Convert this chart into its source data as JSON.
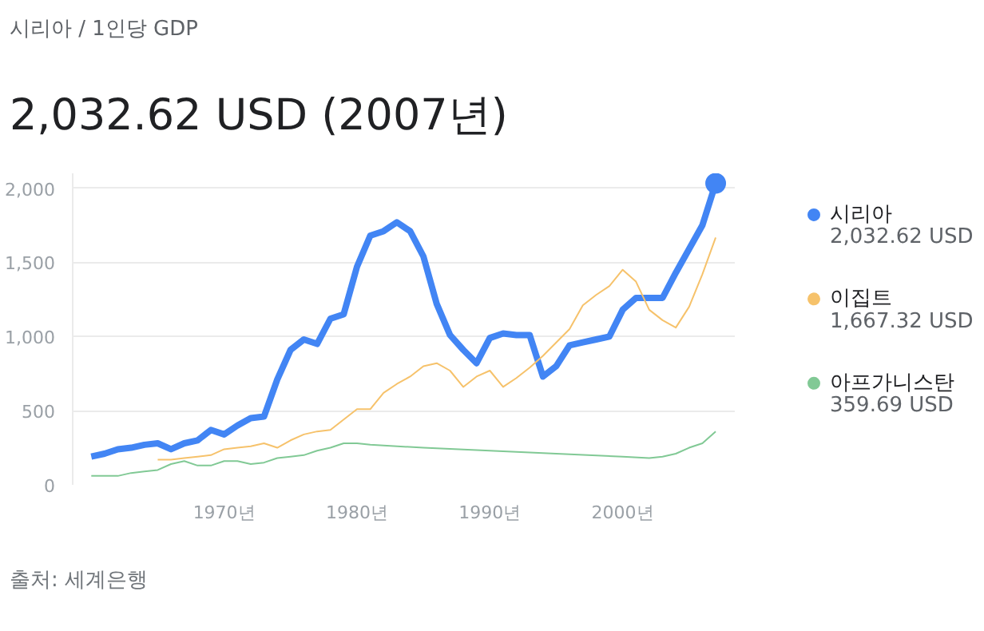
{
  "chart_data": {
    "type": "line",
    "subtitle": "시리아 / 1인당 GDP",
    "title": "2,032.62 USD (2007년)",
    "annotations": [
      "2,032.62 USD",
      "1,667.32 USD",
      "359.69 USD",
      "출처: 세계은행"
    ],
    "xlim": [
      1958.6,
      2008.5
    ],
    "xticks": [
      {
        "value": 1970,
        "label": "1970년"
      },
      {
        "value": 1980,
        "label": "1980년"
      },
      {
        "value": 1990,
        "label": "1990년"
      },
      {
        "value": 2000,
        "label": "2000년"
      }
    ],
    "ylim": [
      0,
      2100
    ],
    "yticks": [
      0,
      500,
      {
        "value": 1000,
        "label": "1,000"
      },
      {
        "value": 1500,
        "label": "1,500"
      },
      {
        "value": 2000,
        "label": "2,000"
      }
    ],
    "grid": "y",
    "legend": "right",
    "marker": "none",
    "line_style": "solid",
    "series": [
      {
        "name": "시리아",
        "color": "#4285f4",
        "x": [
          1960,
          1961,
          1962,
          1963,
          1964,
          1965,
          1966,
          1967,
          1968,
          1969,
          1970,
          1971,
          1972,
          1973,
          1974,
          1975,
          1976,
          1977,
          1978,
          1979,
          1980,
          1981,
          1982,
          1983,
          1984,
          1985,
          1986,
          1987,
          1988,
          1989,
          1990,
          1991,
          1992,
          1993,
          1994,
          1995,
          1996,
          1997,
          1998,
          1999,
          2000,
          2001,
          2002,
          2003,
          2004,
          2005,
          2006,
          2007
        ],
        "values": [
          190,
          210,
          240,
          250,
          270,
          280,
          240,
          280,
          300,
          370,
          340,
          400,
          450,
          460,
          710,
          910,
          980,
          950,
          1120,
          1150,
          1470,
          1680,
          1710,
          1770,
          1710,
          1540,
          1220,
          1010,
          910,
          820,
          990,
          1020,
          1010,
          1010,
          730,
          800,
          940,
          960,
          980,
          1000,
          1180,
          1260,
          1260,
          1260,
          1430,
          1590,
          1750,
          2032.62
        ]
      },
      {
        "name": "이집트",
        "color": "#f6c26b",
        "x": [
          1965,
          1966,
          1967,
          1968,
          1969,
          1970,
          1971,
          1972,
          1973,
          1974,
          1975,
          1976,
          1977,
          1978,
          1979,
          1980,
          1981,
          1982,
          1983,
          1984,
          1985,
          1986,
          1987,
          1988,
          1989,
          1990,
          1991,
          1992,
          1993,
          1994,
          1995,
          1996,
          1997,
          1998,
          1999,
          2000,
          2001,
          2002,
          2003,
          2004,
          2005,
          2006,
          2007
        ],
        "values": [
          170,
          170,
          180,
          190,
          200,
          240,
          250,
          260,
          280,
          250,
          300,
          340,
          360,
          370,
          440,
          510,
          510,
          620,
          680,
          730,
          800,
          820,
          770,
          660,
          730,
          770,
          660,
          720,
          790,
          870,
          960,
          1050,
          1210,
          1280,
          1340,
          1450,
          1370,
          1180,
          1110,
          1060,
          1200,
          1420,
          1667.32
        ]
      },
      {
        "name": "아프가니스탄",
        "color": "#81c995",
        "x": [
          1960,
          1961,
          1962,
          1963,
          1964,
          1965,
          1966,
          1967,
          1968,
          1969,
          1970,
          1971,
          1972,
          1973,
          1974,
          1975,
          1976,
          1977,
          1978,
          1979,
          1980,
          1981,
          1985,
          1990,
          1995,
          2000,
          2002,
          2003,
          2004,
          2005,
          2006,
          2007
        ],
        "values": [
          60,
          60,
          60,
          80,
          90,
          100,
          140,
          160,
          130,
          130,
          160,
          160,
          140,
          150,
          180,
          190,
          200,
          230,
          250,
          280,
          280,
          270,
          250,
          230,
          210,
          190,
          180,
          190,
          210,
          250,
          280,
          359.69
        ]
      },
      {
        "type": "scatter",
        "marker": "circle",
        "color": "#4285f4",
        "x": [
          2007
        ],
        "values": [
          2032.62
        ]
      }
    ]
  }
}
